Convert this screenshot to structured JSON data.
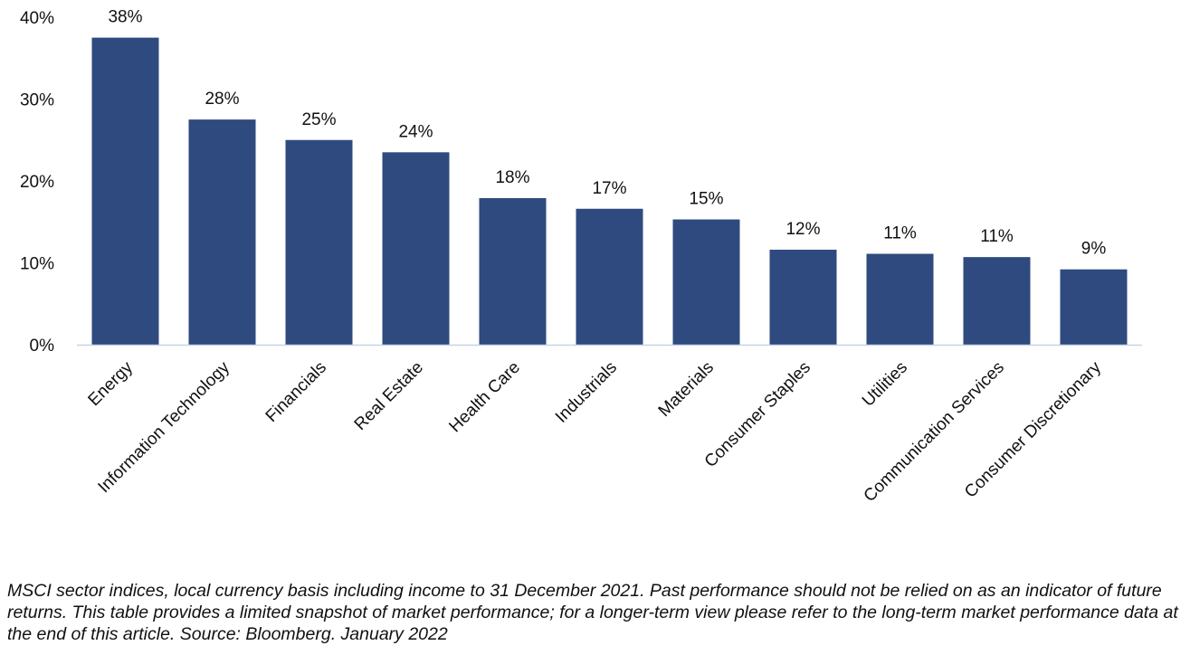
{
  "chart_data": {
    "type": "bar",
    "categories": [
      "Energy",
      "Information Technology",
      "Financials",
      "Real Estate",
      "Health Care",
      "Industrials",
      "Materials",
      "Consumer Staples",
      "Utilities",
      "Communication Services",
      "Consumer Discretionary"
    ],
    "values": [
      37.5,
      27.5,
      25.0,
      23.5,
      17.9,
      16.6,
      15.3,
      11.6,
      11.1,
      10.7,
      9.2
    ],
    "data_labels": [
      "38%",
      "28%",
      "25%",
      "24%",
      "18%",
      "17%",
      "15%",
      "12%",
      "11%",
      "11%",
      "9%"
    ],
    "ytick_labels": [
      "0%",
      "10%",
      "20%",
      "30%",
      "40%"
    ],
    "ylim": [
      0,
      40
    ],
    "grid": false,
    "legend": "none",
    "bar_color": "#2f4a7f",
    "axis_color": "#c8d3e6"
  },
  "footnote": "MSCI sector indices, local currency basis including income to 31 December 2021. Past performance should not be relied on as an indicator of future returns. This table provides a limited snapshot of market performance; for a longer-term view please refer to the long-term market performance data at the end of this article. Source: Bloomberg. January 2022"
}
